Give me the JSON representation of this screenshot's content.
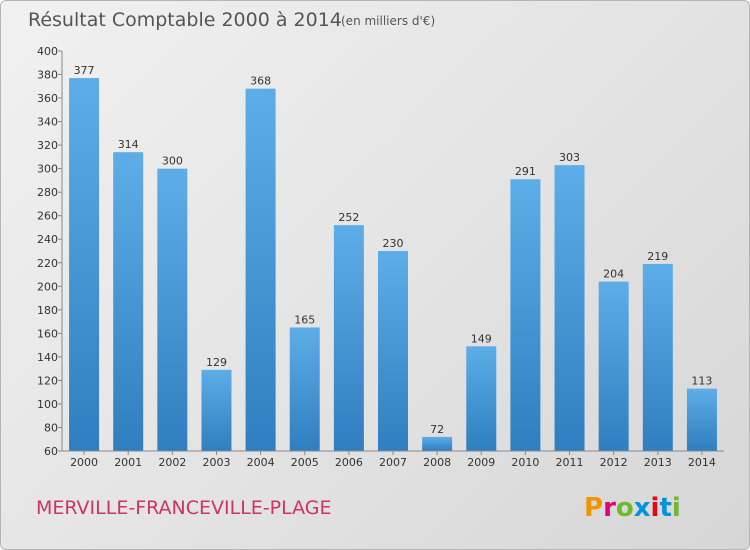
{
  "header": {
    "title": "Résultat Comptable 2000 à 2014",
    "unit": "(en milliers d'€)"
  },
  "footer": {
    "commune": "MERVILLE-FRANCEVILLE-PLAGE",
    "brand": [
      "P",
      "r",
      "o",
      "x",
      "i",
      "t",
      "i"
    ]
  },
  "colors": {
    "bar_light": "#5dade8",
    "bar_dark": "#2f7fc0",
    "commune": "#cc3366",
    "brand": [
      "#f29400",
      "#e2007a",
      "#73b72e",
      "#0095da",
      "#e30613",
      "#0095da",
      "#73b72e"
    ]
  },
  "chart_data": {
    "type": "bar",
    "title": "Résultat Comptable 2000 à 2014",
    "subtitle": "(en milliers d'€)",
    "xlabel": "",
    "ylabel": "",
    "categories": [
      "2000",
      "2001",
      "2002",
      "2003",
      "2004",
      "2005",
      "2006",
      "2007",
      "2008",
      "2009",
      "2010",
      "2011",
      "2012",
      "2013",
      "2014"
    ],
    "values": [
      377,
      314,
      300,
      129,
      368,
      165,
      252,
      230,
      72,
      149,
      291,
      303,
      204,
      219,
      113
    ],
    "ylim": [
      60,
      400
    ],
    "yticks": [
      60,
      80,
      100,
      120,
      140,
      160,
      180,
      200,
      220,
      240,
      260,
      280,
      300,
      320,
      340,
      360,
      380,
      400
    ],
    "grid": false,
    "legend": "none"
  }
}
